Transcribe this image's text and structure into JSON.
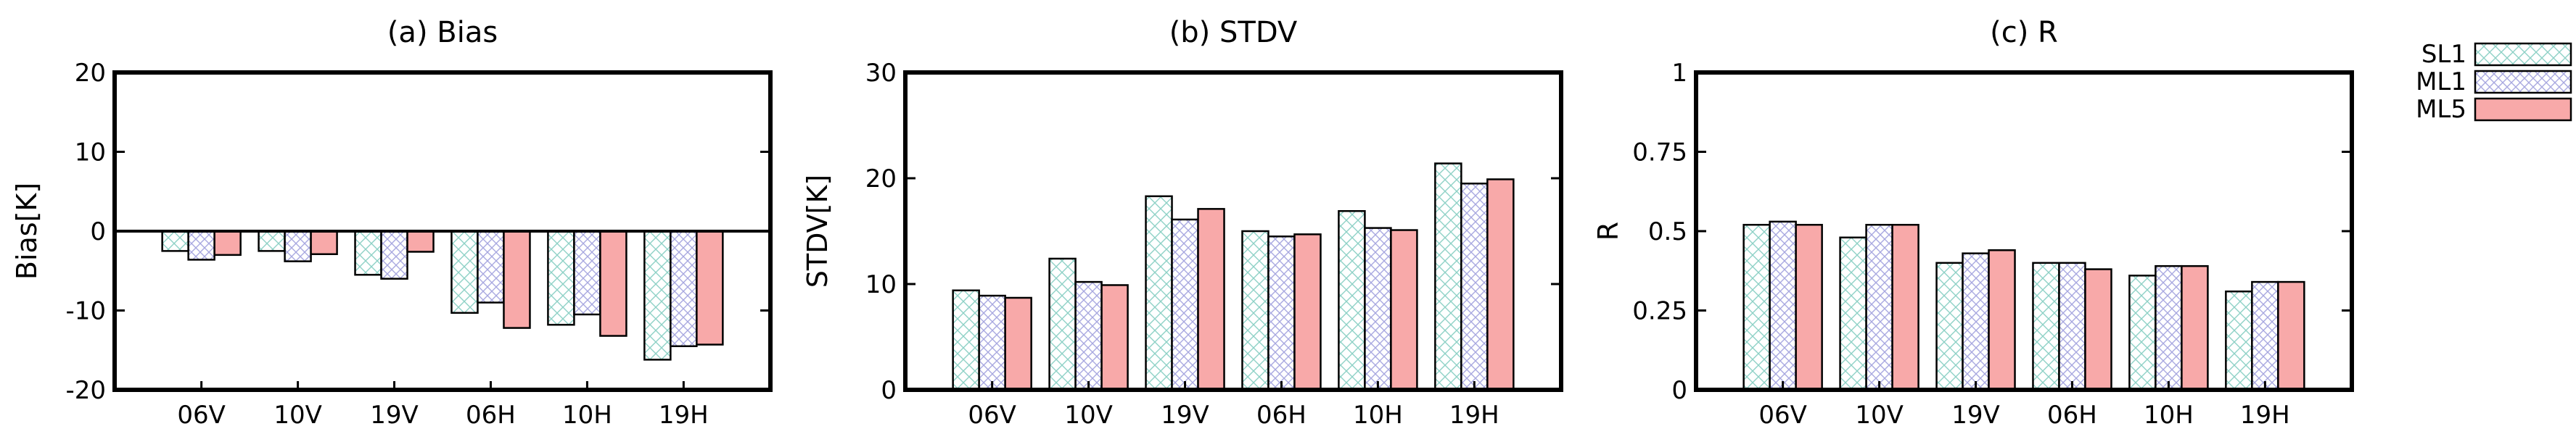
{
  "chart_data": [
    {
      "type": "bar",
      "title": "(a) Bias",
      "xlabel": "",
      "ylabel": "Bias[K]",
      "ylim": [
        -20,
        20
      ],
      "yticks": [
        -20,
        -10,
        0,
        10,
        20
      ],
      "ytick_labels": [
        "-20",
        "-10",
        "0",
        "10",
        "20"
      ],
      "categories": [
        "06V",
        "10V",
        "19V",
        "06H",
        "10H",
        "19H"
      ],
      "zero_line": true,
      "series": [
        {
          "name": "SL1",
          "values": [
            -2.5,
            -2.5,
            -5.5,
            -10.3,
            -11.8,
            -16.2
          ]
        },
        {
          "name": "ML1",
          "values": [
            -3.6,
            -3.8,
            -6.0,
            -9.0,
            -10.5,
            -14.5
          ]
        },
        {
          "name": "ML5",
          "values": [
            -3.0,
            -2.9,
            -2.6,
            -12.2,
            -13.2,
            -14.3
          ]
        }
      ]
    },
    {
      "type": "bar",
      "title": "(b) STDV",
      "xlabel": "",
      "ylabel": "STDV[K]",
      "ylim": [
        0,
        30
      ],
      "yticks": [
        0,
        10,
        20,
        30
      ],
      "ytick_labels": [
        "0",
        "10",
        "20",
        "30"
      ],
      "categories": [
        "06V",
        "10V",
        "19V",
        "06H",
        "10H",
        "19H"
      ],
      "zero_line": false,
      "series": [
        {
          "name": "SL1",
          "values": [
            9.4,
            12.4,
            18.3,
            15.0,
            16.9,
            21.4
          ]
        },
        {
          "name": "ML1",
          "values": [
            8.9,
            10.2,
            16.1,
            14.5,
            15.3,
            19.5
          ]
        },
        {
          "name": "ML5",
          "values": [
            8.7,
            9.9,
            17.1,
            14.7,
            15.1,
            19.9
          ]
        }
      ]
    },
    {
      "type": "bar",
      "title": "(c) R",
      "xlabel": "",
      "ylabel": "R",
      "ylim": [
        0,
        1
      ],
      "yticks": [
        0,
        0.25,
        0.5,
        0.75,
        1
      ],
      "ytick_labels": [
        "0",
        "0.25",
        "0.5",
        "0.75",
        "1"
      ],
      "categories": [
        "06V",
        "10V",
        "19V",
        "06H",
        "10H",
        "19H"
      ],
      "zero_line": false,
      "series": [
        {
          "name": "SL1",
          "values": [
            0.52,
            0.48,
            0.4,
            0.4,
            0.36,
            0.31
          ]
        },
        {
          "name": "ML1",
          "values": [
            0.53,
            0.52,
            0.43,
            0.4,
            0.39,
            0.34
          ]
        },
        {
          "name": "ML5",
          "values": [
            0.52,
            0.52,
            0.44,
            0.38,
            0.39,
            0.34
          ]
        }
      ]
    }
  ],
  "legend": {
    "placement": "top-right",
    "entries": [
      {
        "name": "SL1",
        "pattern": "crosshatch-green"
      },
      {
        "name": "ML1",
        "pattern": "crosshatch-blue"
      },
      {
        "name": "ML5",
        "pattern": "solid-pink"
      }
    ]
  },
  "colors": {
    "sl1_hatch": "#8ed1c6",
    "ml1_hatch": "#a8a8e0",
    "ml5_fill": "#f8a9a9",
    "frame": "#000000"
  }
}
